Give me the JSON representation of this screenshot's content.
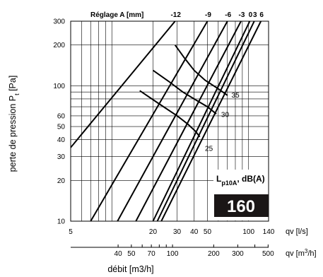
{
  "chart_data": {
    "type": "line",
    "title": "Réglage A [mm]",
    "ylabel_main": "perte de pression P",
    "ylabel_sub": "t",
    "ylabel_unit": " [Pa]",
    "xlabel": "débit [m3/h]",
    "x_axis_primary_label": "qv [l/s]",
    "x_axis_secondary_label": "qv [m",
    "x_axis_secondary_label_sup": "3",
    "x_axis_secondary_label_end": "/h]",
    "y_scale": "log",
    "x_scale": "log",
    "ylim": [
      10,
      300
    ],
    "xlim_ls": [
      5,
      140
    ],
    "y_ticks": [
      {
        "value": 10,
        "label": "10"
      },
      {
        "value": 20,
        "label": "20"
      },
      {
        "value": 30,
        "label": "30"
      },
      {
        "value": 40,
        "label": "40"
      },
      {
        "value": 50,
        "label": "50"
      },
      {
        "value": 60,
        "label": "60"
      },
      {
        "value": 100,
        "label": "100"
      },
      {
        "value": 200,
        "label": "200"
      },
      {
        "value": 300,
        "label": "300"
      }
    ],
    "x_ticks_ls": [
      {
        "value": 5,
        "label": "5"
      },
      {
        "value": 20,
        "label": "20"
      },
      {
        "value": 30,
        "label": "30"
      },
      {
        "value": 40,
        "label": "40"
      },
      {
        "value": 50,
        "label": "50"
      },
      {
        "value": 100,
        "label": "100"
      },
      {
        "value": 140,
        "label": "140"
      }
    ],
    "x_ticks_m3h": [
      {
        "value": 40,
        "label": "40"
      },
      {
        "value": 50,
        "label": "50"
      },
      {
        "value": 70,
        "label": "70"
      },
      {
        "value": 100,
        "label": "100"
      },
      {
        "value": 200,
        "label": "200"
      },
      {
        "value": 300,
        "label": "300"
      },
      {
        "value": 500,
        "label": "500"
      }
    ],
    "series": [
      {
        "name": "-12",
        "points": [
          [
            5,
            35
          ],
          [
            29,
            300
          ]
        ]
      },
      {
        "name": "-9",
        "points": [
          [
            7,
            10
          ],
          [
            50,
            300
          ]
        ]
      },
      {
        "name": "-6",
        "points": [
          [
            11,
            10
          ],
          [
            70,
            300
          ]
        ]
      },
      {
        "name": "-3",
        "points": [
          [
            15,
            10
          ],
          [
            88,
            300
          ]
        ]
      },
      {
        "name": "0",
        "points": [
          [
            20,
            10
          ],
          [
            102,
            300
          ]
        ]
      },
      {
        "name": "3",
        "points": [
          [
            21.5,
            10
          ],
          [
            110,
            300
          ]
        ]
      },
      {
        "name": "6",
        "points": [
          [
            23,
            10
          ],
          [
            123,
            300
          ]
        ]
      }
    ],
    "noise_curves": [
      {
        "name": "35",
        "points": [
          [
            29,
            200
          ],
          [
            34,
            160
          ],
          [
            40,
            130
          ],
          [
            48,
            110
          ],
          [
            60,
            95
          ],
          [
            70,
            85
          ]
        ]
      },
      {
        "name": "30",
        "points": [
          [
            20,
            130
          ],
          [
            26,
            108
          ],
          [
            33,
            90
          ],
          [
            40,
            80
          ],
          [
            50,
            70
          ],
          [
            58,
            62
          ]
        ]
      },
      {
        "name": "25",
        "points": [
          [
            16,
            92
          ],
          [
            22,
            74
          ],
          [
            30,
            60
          ],
          [
            36,
            52
          ],
          [
            41,
            46
          ],
          [
            44,
            42
          ]
        ]
      }
    ],
    "noise_labels": [
      {
        "text": "35",
        "at": [
          75,
          82
        ]
      },
      {
        "text": "30",
        "at": [
          63,
          59
        ]
      },
      {
        "text": "25",
        "at": [
          48,
          33
        ]
      }
    ],
    "lp_label": "L",
    "lp_sub": "p10A",
    "lp_unit": ", dB(A)",
    "size_badge": "160"
  }
}
